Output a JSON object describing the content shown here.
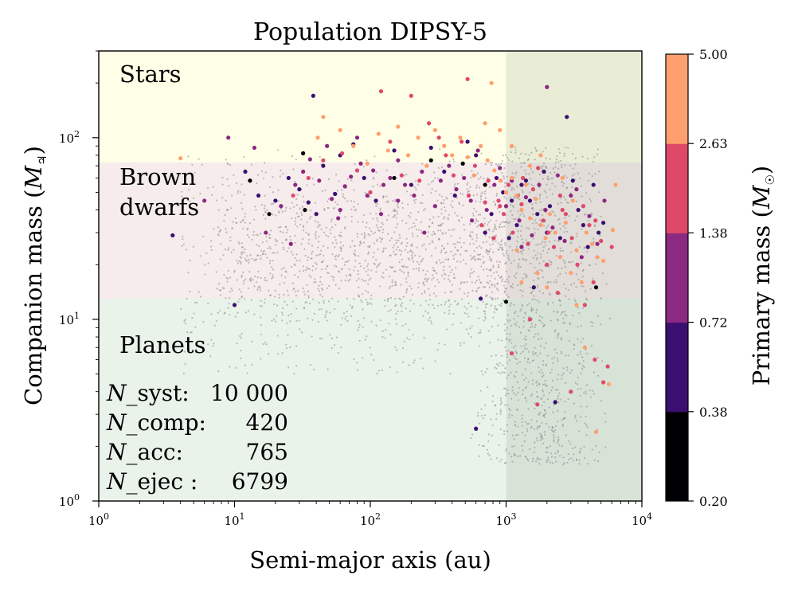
{
  "chart_data": {
    "type": "scatter",
    "title": "Population DIPSY-5",
    "xlabel": "Semi-major axis (au)",
    "ylabel_text": "Companion mass (",
    "ylabel_unit": "M",
    "ylabel_close": ")",
    "x_scale": "log",
    "y_scale": "log",
    "xlim": [
      1,
      10000
    ],
    "ylim": [
      1,
      300
    ],
    "x_ticks": [
      1,
      10,
      100,
      1000,
      10000
    ],
    "x_tick_labels": [
      [
        "10",
        "0"
      ],
      [
        "10",
        "1"
      ],
      [
        "10",
        "2"
      ],
      [
        "10",
        "3"
      ],
      [
        "10",
        "4"
      ]
    ],
    "y_ticks": [
      1,
      10,
      100
    ],
    "y_tick_labels": [
      [
        "10",
        "0"
      ],
      [
        "10",
        "1"
      ],
      [
        "10",
        "2"
      ]
    ],
    "grid": false,
    "regions": [
      {
        "label_lines": [
          "Stars"
        ],
        "y_from": 73,
        "y_to": 300,
        "color": "#ffffe8"
      },
      {
        "label_lines": [
          "Brown",
          "dwarfs"
        ],
        "y_from": 13,
        "y_to": 73,
        "color": "#f6ecec"
      },
      {
        "label_lines": [
          "Planets"
        ],
        "y_from": 1,
        "y_to": 13,
        "color": "#eaf3ea"
      }
    ],
    "shaded_x_from": 1000,
    "shaded_color": "#8a9a84",
    "stats": [
      {
        "name": "_syst:",
        "value": "10 000"
      },
      {
        "name": "_comp:",
        "value": "420"
      },
      {
        "name": "_acc:",
        "value": "765"
      },
      {
        "name": "_ejec :",
        "value": "6799"
      }
    ],
    "stats_symbol": "N",
    "colorbar": {
      "label_text": "Primary mass (",
      "label_unit": "M",
      "label_close": ")",
      "tick_labels": [
        "0.20",
        "0.38",
        "0.72",
        "1.38",
        "2.63",
        "5.00"
      ],
      "colors": [
        "#000004",
        "#3b0f70",
        "#8c2981",
        "#de4968",
        "#fe9f6d"
      ]
    },
    "series": [
      {
        "bin": 0,
        "points": [
          [
            13,
            58
          ],
          [
            18,
            38
          ],
          [
            32,
            82
          ],
          [
            33,
            40
          ],
          [
            280,
            75
          ],
          [
            480,
            72
          ],
          [
            1000,
            12.5
          ],
          [
            4600,
            15
          ],
          [
            150,
            60
          ],
          [
            700,
            55
          ]
        ]
      },
      {
        "bin": 1,
        "points": [
          [
            3.5,
            29
          ],
          [
            10,
            12
          ],
          [
            12,
            65
          ],
          [
            15,
            48
          ],
          [
            20,
            45
          ],
          [
            25,
            60
          ],
          [
            30,
            52
          ],
          [
            35,
            44
          ],
          [
            38,
            170
          ],
          [
            40,
            38
          ],
          [
            45,
            70
          ],
          [
            55,
            49
          ],
          [
            60,
            80
          ],
          [
            75,
            92
          ],
          [
            90,
            60
          ],
          [
            110,
            45
          ],
          [
            150,
            85
          ],
          [
            200,
            55
          ],
          [
            280,
            88
          ],
          [
            350,
            65
          ],
          [
            420,
            48
          ],
          [
            520,
            95
          ],
          [
            600,
            80
          ],
          [
            700,
            30
          ],
          [
            780,
            38
          ],
          [
            850,
            60
          ],
          [
            950,
            50
          ],
          [
            1050,
            28
          ],
          [
            1200,
            33
          ],
          [
            1300,
            55
          ],
          [
            1500,
            45
          ],
          [
            1700,
            38
          ],
          [
            1900,
            65
          ],
          [
            2100,
            42
          ],
          [
            2300,
            3.5
          ],
          [
            2500,
            28
          ],
          [
            2800,
            130
          ],
          [
            3100,
            58
          ],
          [
            3400,
            40
          ],
          [
            3700,
            33
          ],
          [
            4000,
            25
          ],
          [
            4400,
            55
          ],
          [
            4800,
            30
          ],
          [
            5200,
            34
          ],
          [
            600,
            2.5
          ],
          [
            650,
            13
          ],
          [
            1100,
            45
          ],
          [
            1400,
            58
          ],
          [
            1600,
            15
          ],
          [
            2000,
            30
          ]
        ]
      },
      {
        "bin": 2,
        "points": [
          [
            6,
            45
          ],
          [
            9,
            100
          ],
          [
            14,
            88
          ],
          [
            17,
            30
          ],
          [
            22,
            42
          ],
          [
            26,
            26
          ],
          [
            28,
            55
          ],
          [
            32,
            65
          ],
          [
            36,
            76
          ],
          [
            42,
            58
          ],
          [
            48,
            90
          ],
          [
            52,
            46
          ],
          [
            58,
            36
          ],
          [
            65,
            54
          ],
          [
            72,
            61
          ],
          [
            85,
            72
          ],
          [
            95,
            48
          ],
          [
            105,
            66
          ],
          [
            125,
            55
          ],
          [
            140,
            60
          ],
          [
            160,
            75
          ],
          [
            180,
            55
          ],
          [
            210,
            48
          ],
          [
            240,
            65
          ],
          [
            300,
            42
          ],
          [
            330,
            58
          ],
          [
            380,
            70
          ],
          [
            430,
            52
          ],
          [
            490,
            60
          ],
          [
            550,
            45
          ],
          [
            620,
            85
          ],
          [
            720,
            40
          ],
          [
            820,
            55
          ],
          [
            900,
            68
          ],
          [
            1000,
            42
          ],
          [
            1100,
            58
          ],
          [
            1250,
            35
          ],
          [
            1400,
            47
          ],
          [
            1550,
            29
          ],
          [
            1750,
            55
          ],
          [
            1950,
            40
          ],
          [
            2200,
            32
          ],
          [
            2400,
            62
          ],
          [
            2700,
            27
          ],
          [
            3000,
            48
          ],
          [
            3300,
            52
          ],
          [
            3600,
            22
          ],
          [
            4100,
            37
          ],
          [
            4700,
            26
          ],
          [
            5300,
            45
          ],
          [
            2000,
            190
          ],
          [
            60,
            40
          ],
          [
            120,
            38
          ],
          [
            250,
            30
          ],
          [
            160,
            45
          ],
          [
            80,
            100
          ],
          [
            560,
            35
          ],
          [
            1300,
            25
          ]
        ]
      },
      {
        "bin": 3,
        "points": [
          [
            27,
            48
          ],
          [
            35,
            60
          ],
          [
            45,
            75
          ],
          [
            62,
            82
          ],
          [
            80,
            66
          ],
          [
            100,
            50
          ],
          [
            120,
            180
          ],
          [
            140,
            95
          ],
          [
            170,
            62
          ],
          [
            200,
            170
          ],
          [
            230,
            58
          ],
          [
            270,
            120
          ],
          [
            320,
            100
          ],
          [
            360,
            80
          ],
          [
            410,
            62
          ],
          [
            470,
            95
          ],
          [
            530,
            48
          ],
          [
            590,
            70
          ],
          [
            660,
            33
          ],
          [
            740,
            58
          ],
          [
            810,
            28
          ],
          [
            880,
            45
          ],
          [
            960,
            38
          ],
          [
            1040,
            55
          ],
          [
            1120,
            30
          ],
          [
            1220,
            48
          ],
          [
            1330,
            60
          ],
          [
            1450,
            26
          ],
          [
            1580,
            52
          ],
          [
            1720,
            68
          ],
          [
            1880,
            35
          ],
          [
            2050,
            30
          ],
          [
            2250,
            25
          ],
          [
            2500,
            48
          ],
          [
            2750,
            38
          ],
          [
            3050,
            28
          ],
          [
            3350,
            20
          ],
          [
            3700,
            42
          ],
          [
            4100,
            33
          ],
          [
            4550,
            35
          ],
          [
            5000,
            27
          ],
          [
            5600,
            5.5
          ],
          [
            6000,
            25
          ],
          [
            3000,
            4
          ],
          [
            3800,
            12
          ],
          [
            4500,
            6
          ],
          [
            5200,
            4.5
          ],
          [
            1700,
            3.4
          ],
          [
            1100,
            6.5
          ],
          [
            1500,
            10
          ],
          [
            2000,
            20
          ],
          [
            2400,
            14
          ],
          [
            520,
            210
          ],
          [
            4400,
            16
          ],
          [
            2600,
            40
          ],
          [
            900,
            42
          ],
          [
            1300,
            43
          ],
          [
            700,
            44
          ]
        ]
      },
      {
        "bin": 4,
        "points": [
          [
            4,
            77
          ],
          [
            41,
            100
          ],
          [
            45,
            130
          ],
          [
            60,
            110
          ],
          [
            75,
            90
          ],
          [
            95,
            72
          ],
          [
            115,
            105
          ],
          [
            135,
            85
          ],
          [
            160,
            115
          ],
          [
            190,
            80
          ],
          [
            225,
            100
          ],
          [
            260,
            70
          ],
          [
            300,
            110
          ],
          [
            350,
            90
          ],
          [
            400,
            80
          ],
          [
            460,
            100
          ],
          [
            520,
            78
          ],
          [
            580,
            62
          ],
          [
            650,
            90
          ],
          [
            730,
            75
          ],
          [
            820,
            66
          ],
          [
            910,
            58
          ],
          [
            1000,
            50
          ],
          [
            1100,
            60
          ],
          [
            1200,
            48
          ],
          [
            1300,
            40
          ],
          [
            1400,
            55
          ],
          [
            1500,
            36
          ],
          [
            1650,
            46
          ],
          [
            1800,
            33
          ],
          [
            1950,
            28
          ],
          [
            2100,
            38
          ],
          [
            2300,
            30
          ],
          [
            2500,
            22
          ],
          [
            2750,
            34
          ],
          [
            3000,
            18
          ],
          [
            3300,
            24
          ],
          [
            3600,
            16
          ],
          [
            3900,
            30
          ],
          [
            4300,
            26
          ],
          [
            4700,
            22
          ],
          [
            5200,
            21
          ],
          [
            5700,
            4.4
          ],
          [
            6100,
            31
          ],
          [
            6400,
            55
          ],
          [
            3800,
            7
          ],
          [
            4600,
            2.4
          ],
          [
            3300,
            12
          ],
          [
            2000,
            15
          ],
          [
            1700,
            18
          ],
          [
            1300,
            16
          ],
          [
            1200,
            24
          ],
          [
            1500,
            70
          ],
          [
            2600,
            60
          ],
          [
            3100,
            45
          ],
          [
            700,
            120
          ],
          [
            780,
            200
          ],
          [
            900,
            110
          ],
          [
            1100,
            90
          ],
          [
            1800,
            80
          ]
        ]
      }
    ]
  }
}
